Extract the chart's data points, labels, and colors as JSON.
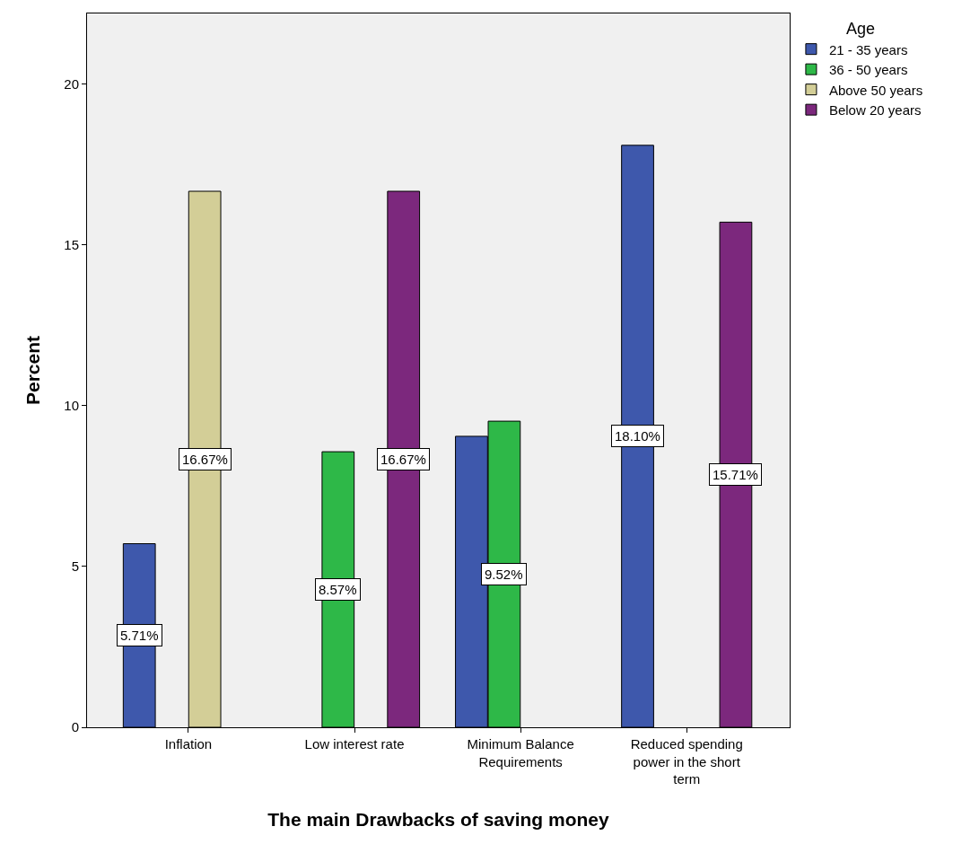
{
  "chart_data": {
    "type": "bar",
    "xlabel": "The main Drawbacks of saving money",
    "ylabel": "Percent",
    "legend_title": "Age",
    "categories": [
      "Inflation",
      "Low interest rate",
      "Minimum Balance Requirements",
      "Reduced spending power in the short term"
    ],
    "series": [
      {
        "name": "21 - 35 years",
        "color": "#3e58ac",
        "values": [
          5.71,
          null,
          9.05,
          18.1
        ],
        "value_labels": [
          "5.71%",
          null,
          null,
          "18.10%"
        ]
      },
      {
        "name": "36 - 50 years",
        "color": "#2eb848",
        "values": [
          null,
          8.57,
          9.52,
          null
        ],
        "value_labels": [
          null,
          "8.57%",
          "9.52%",
          null
        ]
      },
      {
        "name": "Above 50 years",
        "color": "#d3ce97",
        "values": [
          16.67,
          null,
          null,
          null
        ],
        "value_labels": [
          "16.67%",
          null,
          null,
          null
        ]
      },
      {
        "name": "Below 20 years",
        "color": "#7c287d",
        "values": [
          null,
          16.67,
          null,
          15.71
        ],
        "value_labels": [
          null,
          "16.67%",
          null,
          "15.71%"
        ]
      }
    ],
    "ylim": [
      0,
      22.2
    ],
    "yticks": [
      0,
      5,
      10,
      15,
      20
    ],
    "grid": false,
    "legend": "top right"
  }
}
